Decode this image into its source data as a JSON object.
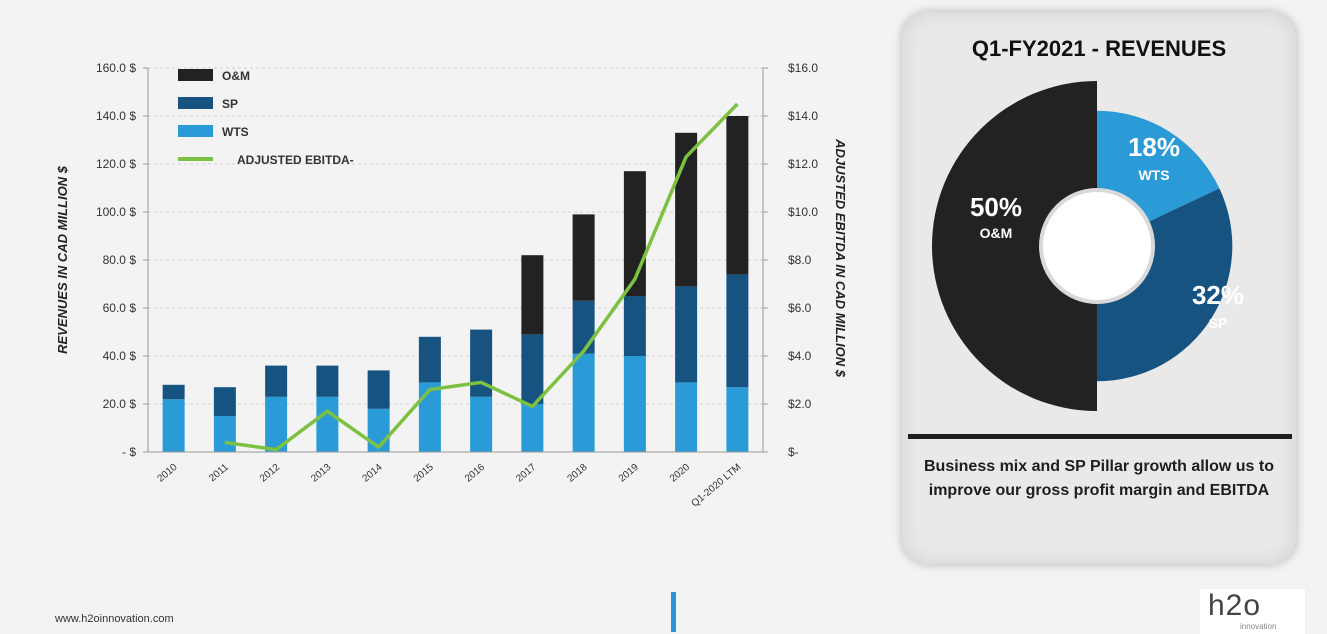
{
  "colors": {
    "om": "#222222",
    "sp": "#175381",
    "wts": "#2a9bd6",
    "ebitda": "#7dc142",
    "accent": "#2a93d5"
  },
  "chart_data": {
    "type": "bar",
    "stacked": true,
    "categories": [
      "2010",
      "2011",
      "2012",
      "2013",
      "2014",
      "2015",
      "2016",
      "2017",
      "2018",
      "2019",
      "2020",
      "Q1-2020 LTM"
    ],
    "series": [
      {
        "name": "WTS",
        "color": "#2a9bd6",
        "values": [
          22,
          15,
          23,
          23,
          18,
          29,
          23,
          20,
          41,
          40,
          29,
          27
        ]
      },
      {
        "name": "SP",
        "color": "#175381",
        "values": [
          6,
          12,
          13,
          13,
          16,
          19,
          28,
          29,
          22,
          25,
          40,
          47
        ]
      },
      {
        "name": "O&M",
        "color": "#222222",
        "values": [
          0,
          0,
          0,
          0,
          0,
          0,
          0,
          33,
          36,
          52,
          64,
          66
        ]
      }
    ],
    "line_series": {
      "name": "ADJUSTED EBITDA-",
      "color": "#7dc142",
      "axis": "right",
      "values": [
        null,
        0.4,
        0.1,
        1.7,
        0.2,
        2.6,
        2.9,
        1.9,
        4.2,
        7.2,
        12.3,
        14.5
      ]
    },
    "legend": [
      "O&M",
      "SP",
      "WTS",
      "ADJUSTED EBITDA-"
    ],
    "legend_position": "top-left",
    "ylabel": "REVENUES IN CAD MILLION $",
    "y2label": "ADJUSTED EBITDA  IN CAD MILLION $",
    "ylim": [
      0,
      160
    ],
    "y2lim": [
      0,
      16
    ],
    "yticks": [
      "-  $",
      "20.0  $",
      "40.0  $",
      "60.0  $",
      "80.0  $",
      "100.0  $",
      "120.0  $",
      "140.0  $",
      "160.0  $"
    ],
    "y2ticks": [
      "$-",
      "$2.0",
      "$4.0",
      "$6.0",
      "$8.0",
      "$10.0",
      "$12.0",
      "$14.0",
      "$16.0"
    ],
    "grid": "horizontal dashed"
  },
  "panel": {
    "title": "Q1-FY2021 - REVENUES",
    "pie": [
      {
        "name": "O&M",
        "pct": "50%",
        "value": 50,
        "color": "#222222"
      },
      {
        "name": "WTS",
        "pct": "18%",
        "value": 18,
        "color": "#2a9bd6"
      },
      {
        "name": "SP",
        "pct": "32%",
        "value": 32,
        "color": "#175381"
      }
    ],
    "caption": "Business mix and SP Pillar growth allow us to improve our gross profit margin and EBITDA"
  },
  "footer": {
    "url": "www.h2oinnovation.com",
    "logo": "h2o",
    "logo_sub": "innovation"
  }
}
